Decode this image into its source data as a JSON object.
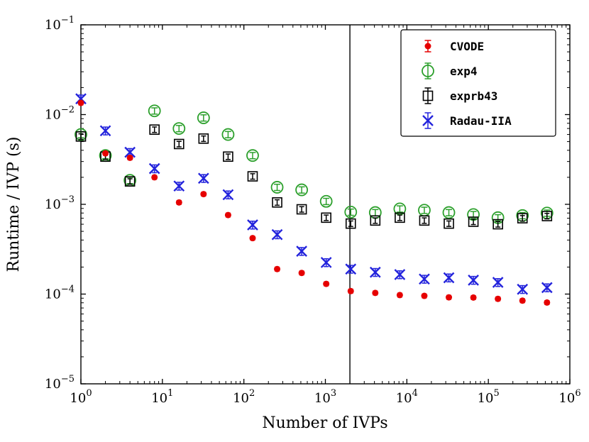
{
  "chart_data": {
    "type": "scatter",
    "title": "",
    "xlabel": "Number of IVPs",
    "ylabel": "Runtime / IVP (s)",
    "xscale": "log",
    "yscale": "log",
    "xlim": [
      1,
      1000000
    ],
    "ylim": [
      1e-05,
      0.1
    ],
    "x_tick_exponents": [
      0,
      1,
      2,
      3,
      4,
      5,
      6
    ],
    "y_tick_exponents": [
      -1,
      -2,
      -3,
      -4,
      -5
    ],
    "grid": false,
    "vline_x": 2000,
    "legend": {
      "position": "upper right",
      "entries": [
        "CVODE",
        "exp4",
        "exprb43",
        "Radau-IIA"
      ]
    },
    "x": [
      1,
      2,
      4,
      8,
      16,
      32,
      64,
      128,
      256,
      512,
      1024,
      2048,
      4096,
      8192,
      16384,
      32768,
      65536,
      131072,
      262144,
      524288
    ],
    "series": [
      {
        "name": "CVODE",
        "color": "#e60000",
        "marker": "circle-filled",
        "yerr_fraction": 0.05,
        "y": [
          0.0135,
          0.0037,
          0.0033,
          0.002,
          0.00105,
          0.0013,
          0.00076,
          0.00042,
          0.00019,
          0.000172,
          0.00013,
          0.000108,
          0.000103,
          9.75e-05,
          9.55e-05,
          9.2e-05,
          9.15e-05,
          8.85e-05,
          8.45e-05,
          8.05e-05
        ]
      },
      {
        "name": "exp4",
        "color": "#2ca02c",
        "marker": "circle-open",
        "yerr_fraction": 0.08,
        "y": [
          0.006,
          0.0035,
          0.00185,
          0.011,
          0.007,
          0.0092,
          0.006,
          0.0035,
          0.00155,
          0.00145,
          0.00108,
          0.00082,
          0.00081,
          0.00089,
          0.00086,
          0.00081,
          0.00077,
          0.00071,
          0.00075,
          0.0008
        ]
      },
      {
        "name": "exprb43",
        "color": "#000000",
        "marker": "square-open",
        "yerr_fraction": 0.07,
        "y": [
          0.0057,
          0.0034,
          0.0018,
          0.0068,
          0.0047,
          0.0054,
          0.0034,
          0.00205,
          0.00105,
          0.00088,
          0.00071,
          0.00061,
          0.00066,
          0.00071,
          0.00066,
          0.00061,
          0.00064,
          0.0006,
          0.0007,
          0.00074
        ]
      },
      {
        "name": "Radau-IIA",
        "color": "#2323dc",
        "marker": "x",
        "yerr_fraction": 0.1,
        "y": [
          0.015,
          0.0066,
          0.0038,
          0.0025,
          0.0016,
          0.00195,
          0.00128,
          0.00059,
          0.00046,
          0.0003,
          0.000225,
          0.00019,
          0.000175,
          0.000165,
          0.000147,
          0.000152,
          0.000143,
          0.000135,
          0.000113,
          0.000118
        ]
      }
    ]
  }
}
